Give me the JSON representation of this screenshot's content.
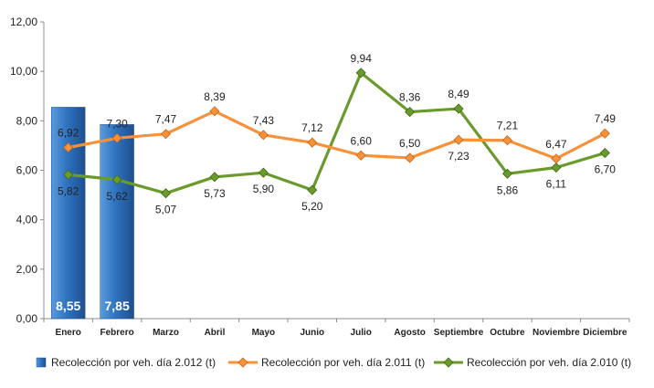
{
  "chart_data": {
    "type": "bar+line",
    "categories": [
      "Enero",
      "Febrero",
      "Marzo",
      "Abril",
      "Mayo",
      "Junio",
      "Julio",
      "Agosto",
      "Septiembre",
      "Octubre",
      "Noviembre",
      "Diciembre"
    ],
    "ylim": [
      0,
      12
    ],
    "yticks": [
      "0,00",
      "2,00",
      "4,00",
      "6,00",
      "8,00",
      "10,00",
      "12,00"
    ],
    "grid": false,
    "legend_position": "bottom",
    "series": [
      {
        "name": "Recolección por veh. día 2.012 (t)",
        "kind": "bar",
        "color": "#2f6fb8",
        "values": [
          8.55,
          7.85,
          null,
          null,
          null,
          null,
          null,
          null,
          null,
          null,
          null,
          null
        ],
        "labels": [
          "8,55",
          "7,85"
        ]
      },
      {
        "name": "Recolección por veh. día 2.011 (t)",
        "kind": "line",
        "color": "#f7923a",
        "values": [
          6.92,
          7.3,
          7.47,
          8.39,
          7.43,
          7.12,
          6.6,
          6.5,
          7.23,
          7.21,
          6.47,
          7.49
        ],
        "labels": [
          "6,92",
          "7,30",
          "7,47",
          "8,39",
          "7,43",
          "7,12",
          "6,60",
          "6,50",
          "7,23",
          "7,21",
          "6,47",
          "7,49"
        ]
      },
      {
        "name": "Recolección por veh. día 2.010 (t)",
        "kind": "line",
        "color": "#6a9a2c",
        "values": [
          5.82,
          5.62,
          5.07,
          5.73,
          5.9,
          5.2,
          9.94,
          8.36,
          8.49,
          5.86,
          6.11,
          6.7
        ],
        "labels": [
          "5,82",
          "5,62",
          "5,07",
          "5,73",
          "5,90",
          "5,20",
          "9,94",
          "8,36",
          "8,49",
          "5,86",
          "6,11",
          "6,70"
        ]
      }
    ]
  }
}
